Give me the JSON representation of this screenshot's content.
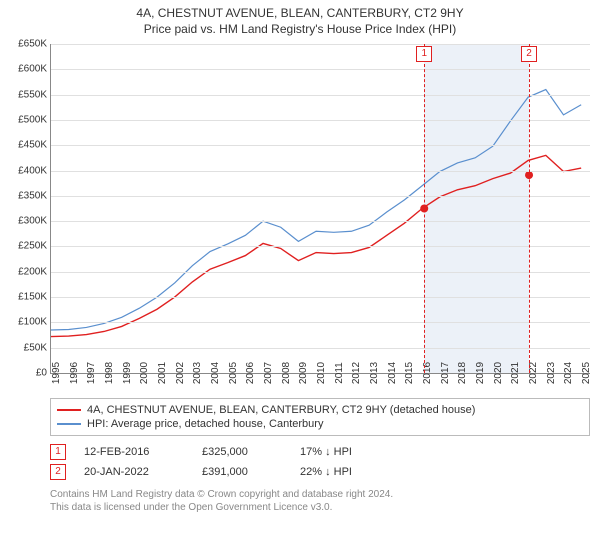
{
  "title": "4A, CHESTNUT AVENUE, BLEAN, CANTERBURY, CT2 9HY",
  "subtitle": "Price paid vs. HM Land Registry's House Price Index (HPI)",
  "chart": {
    "type": "line",
    "background_color": "#ffffff",
    "grid_color": "#e0e0e0",
    "axis_color": "#888888",
    "x": {
      "min": 1995,
      "max": 2025.5,
      "ticks": [
        1995,
        1996,
        1997,
        1998,
        1999,
        2000,
        2001,
        2002,
        2003,
        2004,
        2005,
        2006,
        2007,
        2008,
        2009,
        2010,
        2011,
        2012,
        2013,
        2014,
        2015,
        2016,
        2017,
        2018,
        2019,
        2020,
        2021,
        2022,
        2023,
        2024,
        2025
      ],
      "tick_fontsize": 10,
      "tick_rotation_deg": -90
    },
    "y": {
      "min": 0,
      "max": 650000,
      "ticks": [
        0,
        50000,
        100000,
        150000,
        200000,
        250000,
        300000,
        350000,
        400000,
        450000,
        500000,
        550000,
        600000,
        650000
      ],
      "tick_labels": [
        "£0",
        "£50K",
        "£100K",
        "£150K",
        "£200K",
        "£250K",
        "£300K",
        "£350K",
        "£400K",
        "£450K",
        "£500K",
        "£550K",
        "£600K",
        "£650K"
      ],
      "tick_fontsize": 10
    },
    "highlight_band": {
      "from_x": 2016.12,
      "to_x": 2022.05,
      "fill": "rgba(200,215,235,0.35)"
    },
    "markers": [
      {
        "n": "1",
        "x": 2016.12,
        "line_color": "#e02020"
      },
      {
        "n": "2",
        "x": 2022.05,
        "line_color": "#e02020"
      }
    ],
    "series": [
      {
        "name": "HPI: Average price, detached house, Canterbury",
        "color": "#5a8fce",
        "line_width": 1.2,
        "points": [
          [
            1995,
            85000
          ],
          [
            1996,
            86000
          ],
          [
            1997,
            90000
          ],
          [
            1998,
            98000
          ],
          [
            1999,
            110000
          ],
          [
            2000,
            128000
          ],
          [
            2001,
            150000
          ],
          [
            2002,
            178000
          ],
          [
            2003,
            212000
          ],
          [
            2004,
            240000
          ],
          [
            2005,
            255000
          ],
          [
            2006,
            272000
          ],
          [
            2007,
            300000
          ],
          [
            2008,
            288000
          ],
          [
            2009,
            260000
          ],
          [
            2010,
            280000
          ],
          [
            2011,
            278000
          ],
          [
            2012,
            280000
          ],
          [
            2013,
            292000
          ],
          [
            2014,
            318000
          ],
          [
            2015,
            342000
          ],
          [
            2016,
            370000
          ],
          [
            2017,
            398000
          ],
          [
            2018,
            415000
          ],
          [
            2019,
            425000
          ],
          [
            2020,
            448000
          ],
          [
            2021,
            498000
          ],
          [
            2022,
            545000
          ],
          [
            2023,
            560000
          ],
          [
            2024,
            510000
          ],
          [
            2025,
            530000
          ]
        ]
      },
      {
        "name": "4A, CHESTNUT AVENUE, BLEAN, CANTERBURY, CT2 9HY (detached house)",
        "color": "#e02020",
        "line_width": 1.4,
        "points": [
          [
            1995,
            72000
          ],
          [
            1996,
            73000
          ],
          [
            1997,
            76000
          ],
          [
            1998,
            82000
          ],
          [
            1999,
            92000
          ],
          [
            2000,
            108000
          ],
          [
            2001,
            126000
          ],
          [
            2002,
            150000
          ],
          [
            2003,
            180000
          ],
          [
            2004,
            205000
          ],
          [
            2005,
            218000
          ],
          [
            2006,
            232000
          ],
          [
            2007,
            256000
          ],
          [
            2008,
            246000
          ],
          [
            2009,
            222000
          ],
          [
            2010,
            238000
          ],
          [
            2011,
            236000
          ],
          [
            2012,
            238000
          ],
          [
            2013,
            248000
          ],
          [
            2014,
            272000
          ],
          [
            2015,
            296000
          ],
          [
            2016,
            325000
          ],
          [
            2017,
            348000
          ],
          [
            2018,
            362000
          ],
          [
            2019,
            370000
          ],
          [
            2020,
            384000
          ],
          [
            2021,
            395000
          ],
          [
            2022,
            420000
          ],
          [
            2023,
            430000
          ],
          [
            2024,
            398000
          ],
          [
            2025,
            405000
          ]
        ],
        "sale_dots": [
          {
            "x": 2016.12,
            "y": 325000,
            "r": 4
          },
          {
            "x": 2022.05,
            "y": 391000,
            "r": 4
          }
        ]
      }
    ]
  },
  "legend": {
    "border_color": "#bbbbbb",
    "items": [
      {
        "color": "#e02020",
        "label": "4A, CHESTNUT AVENUE, BLEAN, CANTERBURY, CT2 9HY (detached house)"
      },
      {
        "color": "#5a8fce",
        "label": "HPI: Average price, detached house, Canterbury"
      }
    ]
  },
  "sales": [
    {
      "n": "1",
      "date": "12-FEB-2016",
      "price": "£325,000",
      "delta": "17% ↓ HPI"
    },
    {
      "n": "2",
      "date": "20-JAN-2022",
      "price": "£391,000",
      "delta": "22% ↓ HPI"
    }
  ],
  "footnote_line1": "Contains HM Land Registry data © Crown copyright and database right 2024.",
  "footnote_line2": "This data is licensed under the Open Government Licence v3.0."
}
